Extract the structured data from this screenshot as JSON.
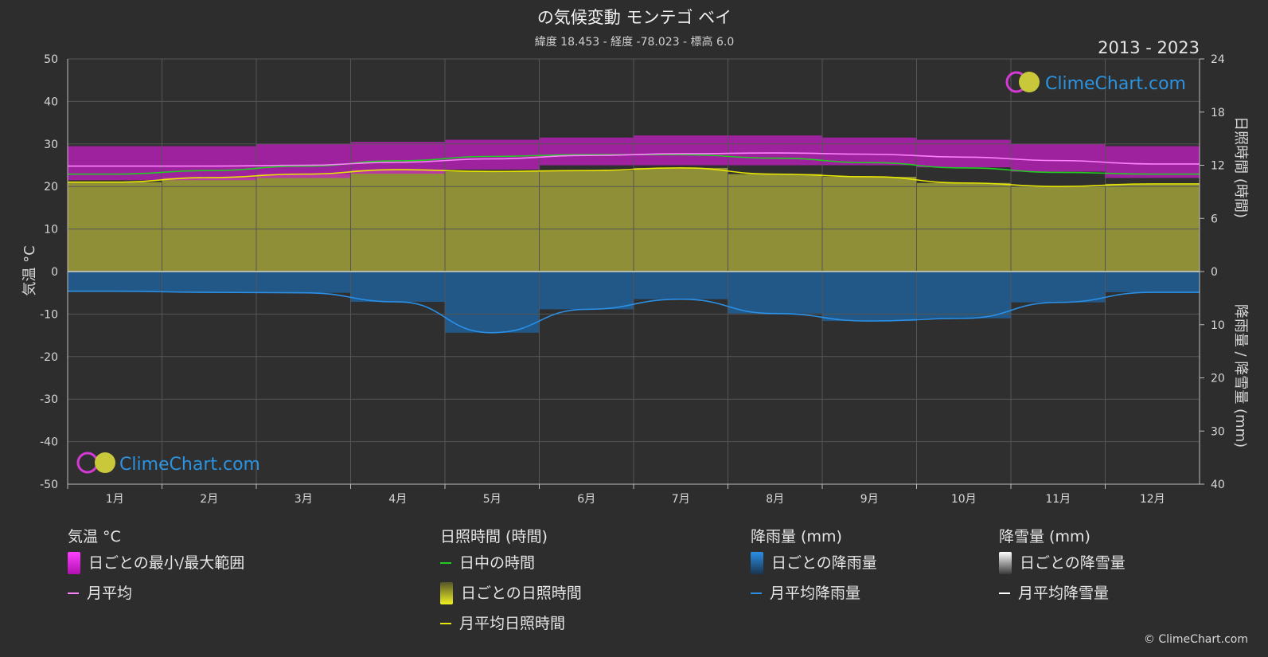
{
  "header": {
    "title": "の気候変動 モンテゴ ベイ",
    "subtitle": "緯度 18.453 - 経度 -78.023 - 標高 6.0",
    "year_range": "2013 - 2023"
  },
  "axes": {
    "left_label": "気温 °C",
    "right_top_label": "日照時間 (時間)",
    "right_bottom_label": "降雨量 / 降雪量 (mm)"
  },
  "watermark": "ClimeChart.com",
  "copyright": "© ClimeChart.com",
  "legend": {
    "temperature": {
      "heading": "気温 °C",
      "items": [
        "日ごとの最小/最大範囲",
        "月平均"
      ]
    },
    "sunshine": {
      "heading": "日照時間 (時間)",
      "items": [
        "日中の時間",
        "日ごとの日照時間",
        "月平均日照時間"
      ]
    },
    "rain": {
      "heading": "降雨量 (mm)",
      "items": [
        "日ごとの降雨量",
        "月平均降雨量"
      ]
    },
    "snow": {
      "heading": "降雪量 (mm)",
      "items": [
        "日ごとの降雪量",
        "月平均降雪量"
      ]
    }
  },
  "colors": {
    "temp_range": "#c41fc4",
    "temp_mean": "#ff80ff",
    "daylight": "#22cc22",
    "sunshine_fill": "#9a9a3a",
    "sunshine_mean": "#e6e600",
    "rain_fill": "#1e5f96",
    "rain_mean": "#2a8fe6",
    "snow_mean": "#ffffff"
  },
  "chart_data": {
    "type": "area",
    "categories": [
      "1月",
      "2月",
      "3月",
      "4月",
      "5月",
      "6月",
      "7月",
      "8月",
      "9月",
      "10月",
      "11月",
      "12月"
    ],
    "left_axis": {
      "label": "気温 °C",
      "ticks": [
        50,
        40,
        30,
        20,
        10,
        0,
        -10,
        -20,
        -30,
        -40,
        -50
      ],
      "ylim": [
        -50,
        50
      ]
    },
    "right_top_axis": {
      "label": "日照時間 (時間)",
      "ticks": [
        24,
        18,
        12,
        6,
        0
      ],
      "ylim": [
        0,
        24
      ]
    },
    "right_bottom_axis": {
      "label": "降雨量 / 降雪量 (mm)",
      "ticks": [
        0,
        10,
        20,
        30,
        40
      ],
      "ylim": [
        0,
        40
      ]
    },
    "grid": true,
    "series": [
      {
        "name": "日ごとの最小/最大範囲",
        "unit": "°C",
        "min": [
          21.5,
          21.5,
          22,
          23,
          24,
          25,
          25,
          25,
          25,
          24.5,
          23.5,
          22
        ],
        "max": [
          29.5,
          29.5,
          30,
          30.5,
          31,
          31.5,
          32,
          32,
          31.5,
          31,
          30,
          29.5
        ]
      },
      {
        "name": "月平均",
        "unit": "°C",
        "values": [
          24.8,
          24.8,
          25.0,
          25.7,
          26.5,
          27.3,
          27.7,
          27.9,
          27.6,
          26.9,
          26.1,
          25.3
        ]
      },
      {
        "name": "日中の時間",
        "unit": "時間",
        "values": [
          11.0,
          11.4,
          11.9,
          12.5,
          13.0,
          13.2,
          13.2,
          12.8,
          12.3,
          11.7,
          11.2,
          11.0
        ]
      },
      {
        "name": "日ごとの日照時間",
        "unit": "時間",
        "values": [
          10.1,
          10.6,
          11.0,
          11.5,
          11.3,
          11.4,
          11.7,
          11.0,
          10.7,
          10.0,
          9.6,
          9.9
        ]
      },
      {
        "name": "月平均日照時間",
        "unit": "時間",
        "values": [
          10.1,
          10.6,
          11.0,
          11.5,
          11.3,
          11.4,
          11.7,
          11.0,
          10.7,
          10.0,
          9.6,
          9.9
        ]
      },
      {
        "name": "日ごとの降雨量",
        "unit": "mm",
        "values": [
          3.7,
          3.9,
          4.0,
          5.7,
          11.5,
          7.1,
          5.2,
          7.9,
          9.3,
          8.8,
          5.8,
          3.9
        ]
      },
      {
        "name": "月平均降雨量",
        "unit": "mm",
        "values": [
          3.7,
          3.9,
          4.0,
          5.7,
          11.5,
          7.1,
          5.2,
          7.9,
          9.3,
          8.8,
          5.8,
          3.9
        ]
      },
      {
        "name": "月平均降雪量",
        "unit": "mm",
        "values": [
          0,
          0,
          0,
          0,
          0,
          0,
          0,
          0,
          0,
          0,
          0,
          0
        ]
      }
    ]
  }
}
